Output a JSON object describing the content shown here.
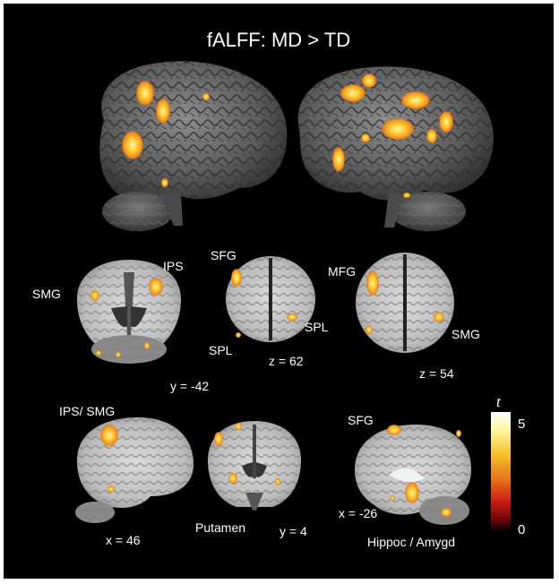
{
  "title": "fALFF: MD > TD",
  "labels": {
    "ips_top": "IPS",
    "smg_left": "SMG",
    "sfg_mid": "SFG",
    "spl_bottom_left": "SPL",
    "spl_right": "SPL",
    "mfg": "MFG",
    "smg_right": "SMG",
    "y_minus42": "y = -42",
    "z_62": "z = 62",
    "z_54": "z = 54",
    "ips_smg": "IPS/ SMG",
    "sfg_sag": "SFG",
    "x_46": "x = 46",
    "putamen": "Putamen",
    "y_4": "y = 4",
    "x_minus26": "x = -26",
    "hippoc_amygd": "Hippoc / Amygd"
  },
  "colorbar": {
    "symbol": "t",
    "max_label": "5",
    "min_label": "0",
    "stops": [
      "#ffffff",
      "#fff8a0",
      "#f6c22a",
      "#e8781a",
      "#c81c12",
      "#6a0508",
      "#000000"
    ]
  },
  "colors": {
    "background": "#000000",
    "brain_dark": "#3d3d3d",
    "brain_light": "#8a8a8a",
    "white_matter": "#d8d8d8",
    "activation_hot": "#ffd23a",
    "activation_mid": "#f29020",
    "activation_low": "#d84a12"
  }
}
